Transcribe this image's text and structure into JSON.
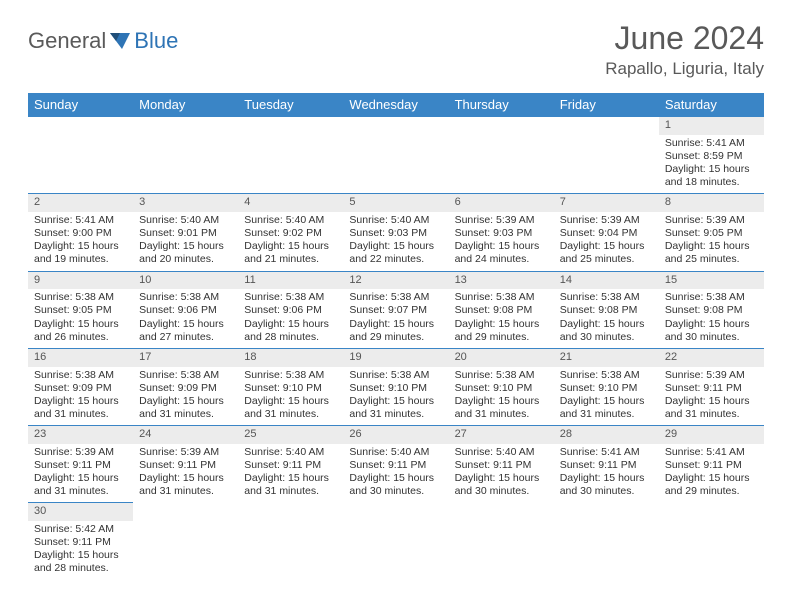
{
  "brand": {
    "part1": "General",
    "part2": "Blue"
  },
  "title": "June 2024",
  "location": "Rapallo, Liguria, Italy",
  "colors": {
    "header_bg": "#3a85c6",
    "header_text": "#ffffff",
    "daynum_bg": "#ececec",
    "row_border": "#3a85c6",
    "body_text": "#333333",
    "title_text": "#595959",
    "brand_gray": "#5a5a5a",
    "brand_blue": "#2e74b5"
  },
  "weekdays": [
    "Sunday",
    "Monday",
    "Tuesday",
    "Wednesday",
    "Thursday",
    "Friday",
    "Saturday"
  ],
  "weeks": [
    {
      "nums": [
        "",
        "",
        "",
        "",
        "",
        "",
        "1"
      ],
      "cells": [
        null,
        null,
        null,
        null,
        null,
        null,
        {
          "sunrise": "5:41 AM",
          "sunset": "8:59 PM",
          "day_h": "15",
          "day_m": "18"
        }
      ]
    },
    {
      "nums": [
        "2",
        "3",
        "4",
        "5",
        "6",
        "7",
        "8"
      ],
      "cells": [
        {
          "sunrise": "5:41 AM",
          "sunset": "9:00 PM",
          "day_h": "15",
          "day_m": "19"
        },
        {
          "sunrise": "5:40 AM",
          "sunset": "9:01 PM",
          "day_h": "15",
          "day_m": "20"
        },
        {
          "sunrise": "5:40 AM",
          "sunset": "9:02 PM",
          "day_h": "15",
          "day_m": "21"
        },
        {
          "sunrise": "5:40 AM",
          "sunset": "9:03 PM",
          "day_h": "15",
          "day_m": "22"
        },
        {
          "sunrise": "5:39 AM",
          "sunset": "9:03 PM",
          "day_h": "15",
          "day_m": "24"
        },
        {
          "sunrise": "5:39 AM",
          "sunset": "9:04 PM",
          "day_h": "15",
          "day_m": "25"
        },
        {
          "sunrise": "5:39 AM",
          "sunset": "9:05 PM",
          "day_h": "15",
          "day_m": "25"
        }
      ]
    },
    {
      "nums": [
        "9",
        "10",
        "11",
        "12",
        "13",
        "14",
        "15"
      ],
      "cells": [
        {
          "sunrise": "5:38 AM",
          "sunset": "9:05 PM",
          "day_h": "15",
          "day_m": "26"
        },
        {
          "sunrise": "5:38 AM",
          "sunset": "9:06 PM",
          "day_h": "15",
          "day_m": "27"
        },
        {
          "sunrise": "5:38 AM",
          "sunset": "9:06 PM",
          "day_h": "15",
          "day_m": "28"
        },
        {
          "sunrise": "5:38 AM",
          "sunset": "9:07 PM",
          "day_h": "15",
          "day_m": "29"
        },
        {
          "sunrise": "5:38 AM",
          "sunset": "9:08 PM",
          "day_h": "15",
          "day_m": "29"
        },
        {
          "sunrise": "5:38 AM",
          "sunset": "9:08 PM",
          "day_h": "15",
          "day_m": "30"
        },
        {
          "sunrise": "5:38 AM",
          "sunset": "9:08 PM",
          "day_h": "15",
          "day_m": "30"
        }
      ]
    },
    {
      "nums": [
        "16",
        "17",
        "18",
        "19",
        "20",
        "21",
        "22"
      ],
      "cells": [
        {
          "sunrise": "5:38 AM",
          "sunset": "9:09 PM",
          "day_h": "15",
          "day_m": "31"
        },
        {
          "sunrise": "5:38 AM",
          "sunset": "9:09 PM",
          "day_h": "15",
          "day_m": "31"
        },
        {
          "sunrise": "5:38 AM",
          "sunset": "9:10 PM",
          "day_h": "15",
          "day_m": "31"
        },
        {
          "sunrise": "5:38 AM",
          "sunset": "9:10 PM",
          "day_h": "15",
          "day_m": "31"
        },
        {
          "sunrise": "5:38 AM",
          "sunset": "9:10 PM",
          "day_h": "15",
          "day_m": "31"
        },
        {
          "sunrise": "5:38 AM",
          "sunset": "9:10 PM",
          "day_h": "15",
          "day_m": "31"
        },
        {
          "sunrise": "5:39 AM",
          "sunset": "9:11 PM",
          "day_h": "15",
          "day_m": "31"
        }
      ]
    },
    {
      "nums": [
        "23",
        "24",
        "25",
        "26",
        "27",
        "28",
        "29"
      ],
      "cells": [
        {
          "sunrise": "5:39 AM",
          "sunset": "9:11 PM",
          "day_h": "15",
          "day_m": "31"
        },
        {
          "sunrise": "5:39 AM",
          "sunset": "9:11 PM",
          "day_h": "15",
          "day_m": "31"
        },
        {
          "sunrise": "5:40 AM",
          "sunset": "9:11 PM",
          "day_h": "15",
          "day_m": "31"
        },
        {
          "sunrise": "5:40 AM",
          "sunset": "9:11 PM",
          "day_h": "15",
          "day_m": "30"
        },
        {
          "sunrise": "5:40 AM",
          "sunset": "9:11 PM",
          "day_h": "15",
          "day_m": "30"
        },
        {
          "sunrise": "5:41 AM",
          "sunset": "9:11 PM",
          "day_h": "15",
          "day_m": "30"
        },
        {
          "sunrise": "5:41 AM",
          "sunset": "9:11 PM",
          "day_h": "15",
          "day_m": "29"
        }
      ]
    },
    {
      "nums": [
        "30",
        "",
        "",
        "",
        "",
        "",
        ""
      ],
      "cells": [
        {
          "sunrise": "5:42 AM",
          "sunset": "9:11 PM",
          "day_h": "15",
          "day_m": "28"
        },
        null,
        null,
        null,
        null,
        null,
        null
      ]
    }
  ],
  "labels": {
    "sunrise": "Sunrise: ",
    "sunset": "Sunset: ",
    "daylight_a": "Daylight: ",
    "daylight_b": " hours and ",
    "daylight_c": " minutes."
  }
}
